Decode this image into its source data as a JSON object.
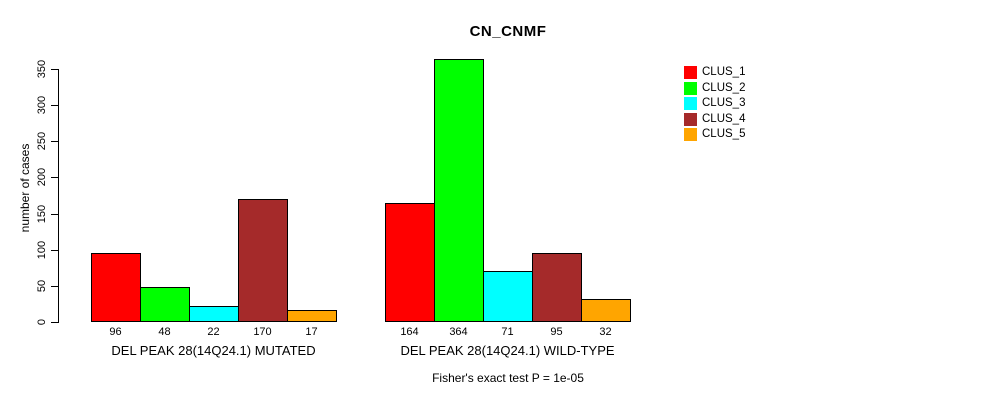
{
  "chart_data": {
    "type": "bar",
    "title": "CN_CNMF",
    "ylabel": "number of cases",
    "xlabel": "",
    "ylim": [
      0,
      350
    ],
    "yticks": [
      0,
      50,
      100,
      150,
      200,
      250,
      300,
      350
    ],
    "grid": false,
    "legend_position": "top-right",
    "bar_value_labels": true,
    "categories": [
      "DEL PEAK 28(14Q24.1) MUTATED",
      "DEL PEAK 28(14Q24.1) WILD-TYPE"
    ],
    "series": [
      {
        "name": "CLUS_1",
        "color": "#FF0000",
        "values": [
          96,
          164
        ]
      },
      {
        "name": "CLUS_2",
        "color": "#00FF00",
        "values": [
          48,
          364
        ]
      },
      {
        "name": "CLUS_3",
        "color": "#00FFFF",
        "values": [
          22,
          71
        ]
      },
      {
        "name": "CLUS_4",
        "color": "#A52A2A",
        "values": [
          170,
          95
        ]
      },
      {
        "name": "CLUS_5",
        "color": "#FFA500",
        "values": [
          17,
          32
        ]
      }
    ],
    "annotation": "Fisher's exact test P = 1e-05"
  }
}
